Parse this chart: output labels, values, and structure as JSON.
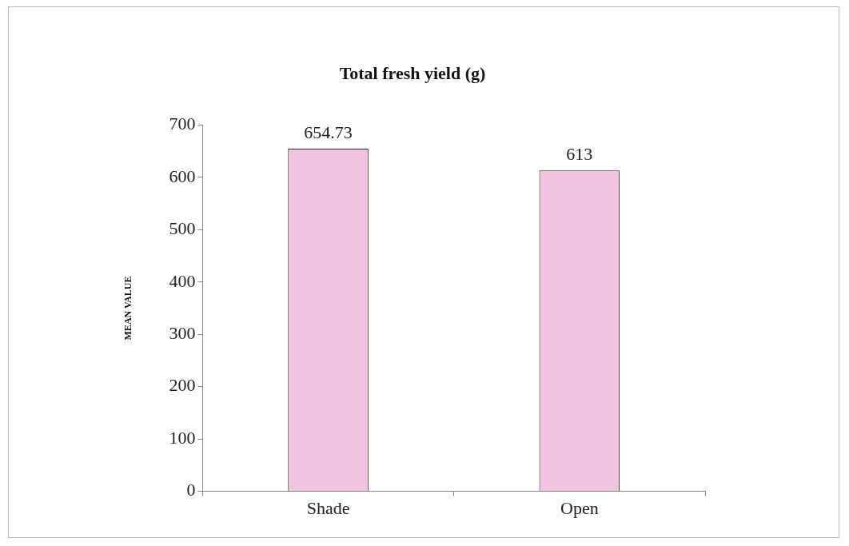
{
  "chart_data": {
    "type": "bar",
    "title": "Total fresh yield (g)",
    "ylabel": "MEAN VALUE",
    "categories": [
      "Shade",
      "Open"
    ],
    "values": [
      654.73,
      613
    ],
    "color": "#f2c4e2",
    "ylim": [
      0,
      700
    ],
    "yticks": [
      0,
      100,
      200,
      300,
      400,
      500,
      600,
      700
    ],
    "grid": false,
    "legend": false,
    "data_labels": true
  }
}
